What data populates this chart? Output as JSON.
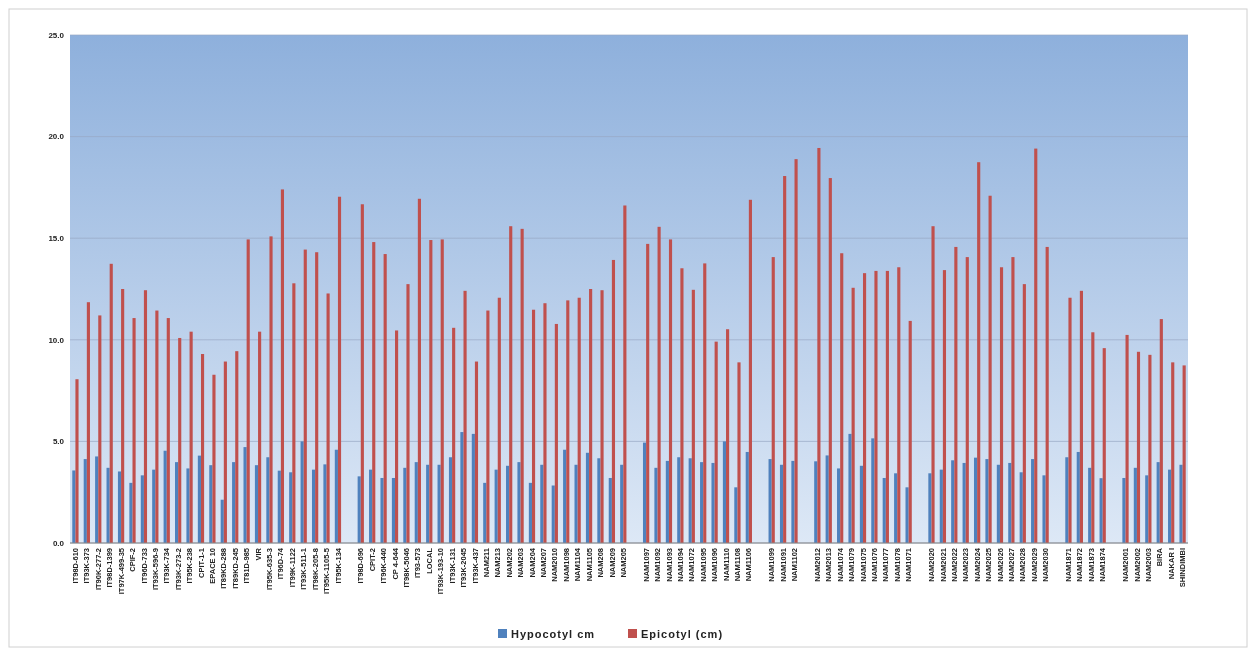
{
  "chart_data": {
    "type": "bar",
    "categories": [
      "IT98D-610",
      "IT93K-373",
      "IT90K-277-2",
      "IT98D-1399",
      "IT97K-499-35",
      "CPIF-2",
      "IT96D-733",
      "IT93K-596-9",
      "IT93K-734",
      "IT93K-273-2",
      "IT95K-238",
      "CPIT-1-1",
      "EPACE 10",
      "IT89KD-288",
      "IT89KD-245",
      "IT81D-985",
      "VIR",
      "IT95K-635-3",
      "IT96D-74",
      "IT99K-1122",
      "IT93K-511-1",
      "IT98K-205-8",
      "IT95K-1105-5",
      "IT95K-134",
      null,
      "IT98D-696",
      "CPIT-2",
      "IT96K-440",
      "CP 4-644",
      "IT98K-5046",
      "IT93-573",
      "LOCAL",
      "IT93K-193-10",
      "IT93K-131",
      "IT93K-2045",
      "IT93K-437",
      "NAM211",
      "NAM213",
      "NAM202",
      "NAM203",
      "NAM204",
      "NAM207",
      "NAM2010",
      "NAM1098",
      "NAM1104",
      "NAM1105",
      "NAM208",
      "NAM209",
      "NAM205",
      null,
      "NAM1097",
      "NAM1092",
      "NAM1093",
      "NAM1094",
      "NAM1072",
      "NAM1095",
      "NAM1096",
      "NAM1110",
      "NAM1108",
      "NAM1106",
      null,
      "NAM1099",
      "NAM1091",
      "NAM1102",
      null,
      "NAM2012",
      "NAM2013",
      "NAM1074",
      "NAM1079",
      "NAM1075",
      "NAM1076",
      "NAM1077",
      "NAM1078",
      "NAM1071",
      null,
      "NAM2020",
      "NAM2021",
      "NAM2022",
      "NAM2023",
      "NAM2024",
      "NAM2025",
      "NAM2026",
      "NAM2027",
      "NAM2028",
      "NAM2029",
      "NAM2030",
      null,
      "NAM1871",
      "NAM1872",
      "NAM1873",
      "NAM1874",
      null,
      "NAM2001",
      "NAM2002",
      "NAM2003",
      "BIRA",
      "NAKAR I",
      "SHINDIMBI"
    ],
    "series": [
      {
        "name": "Hypocotyl cm",
        "color": "#4f81bd",
        "values": [
          3.57,
          4.13,
          4.26,
          3.7,
          3.52,
          2.96,
          3.33,
          3.61,
          4.54,
          3.98,
          3.67,
          4.3,
          3.83,
          2.13,
          3.98,
          4.72,
          3.83,
          4.22,
          3.56,
          3.48,
          5.0,
          3.61,
          3.87,
          4.59,
          null,
          3.28,
          3.61,
          3.2,
          3.2,
          3.7,
          3.98,
          3.85,
          3.85,
          4.22,
          5.46,
          5.37,
          2.96,
          3.61,
          3.8,
          3.98,
          2.96,
          3.85,
          2.83,
          4.59,
          3.85,
          4.44,
          4.17,
          3.2,
          3.85,
          null,
          4.94,
          3.7,
          4.04,
          4.22,
          4.17,
          3.98,
          3.94,
          5.0,
          2.74,
          4.48,
          null,
          4.13,
          3.85,
          4.04,
          null,
          4.02,
          4.31,
          3.67,
          5.37,
          3.8,
          5.15,
          3.2,
          3.43,
          2.74,
          null,
          3.43,
          3.61,
          4.07,
          3.94,
          4.2,
          4.13,
          3.85,
          3.94,
          3.48,
          4.13,
          3.33,
          null,
          4.22,
          4.48,
          3.7,
          3.19,
          null,
          3.2,
          3.7,
          3.33,
          3.98,
          3.61,
          3.85
        ]
      },
      {
        "name": "Epicotyl (cm)",
        "color": "#c0504d",
        "values": [
          8.06,
          11.85,
          11.2,
          13.74,
          12.5,
          11.07,
          12.44,
          11.44,
          11.07,
          10.09,
          10.4,
          9.3,
          8.28,
          8.93,
          9.44,
          14.94,
          10.4,
          15.09,
          17.4,
          12.78,
          14.44,
          14.31,
          12.28,
          17.04,
          null,
          16.67,
          14.81,
          14.22,
          10.46,
          12.74,
          16.94,
          14.91,
          14.94,
          10.59,
          12.41,
          8.93,
          11.44,
          12.07,
          15.59,
          15.46,
          11.48,
          11.8,
          10.78,
          11.94,
          12.07,
          12.5,
          12.44,
          13.93,
          16.61,
          null,
          14.72,
          15.56,
          14.94,
          13.52,
          12.46,
          13.76,
          9.91,
          10.52,
          8.89,
          16.89,
          null,
          14.07,
          18.06,
          18.89,
          null,
          19.44,
          17.96,
          14.26,
          12.56,
          13.28,
          13.39,
          13.39,
          13.57,
          10.93,
          null,
          15.59,
          13.43,
          14.57,
          14.07,
          18.74,
          17.09,
          13.57,
          14.07,
          12.74,
          19.41,
          14.57,
          null,
          12.07,
          12.41,
          10.37,
          9.59,
          null,
          10.24,
          9.41,
          9.26,
          11.02,
          8.89,
          8.74
        ]
      }
    ],
    "ylim": [
      0,
      25
    ],
    "yticks": [
      {
        "value": 0,
        "label": "0.0"
      },
      {
        "value": 5,
        "label": "5.0"
      },
      {
        "value": 10,
        "label": "10.0"
      },
      {
        "value": 15,
        "label": "15.0"
      },
      {
        "value": 20,
        "label": "20.0"
      },
      {
        "value": 25,
        "label": "25.0"
      }
    ],
    "grid": "y",
    "legend": "bottom"
  }
}
